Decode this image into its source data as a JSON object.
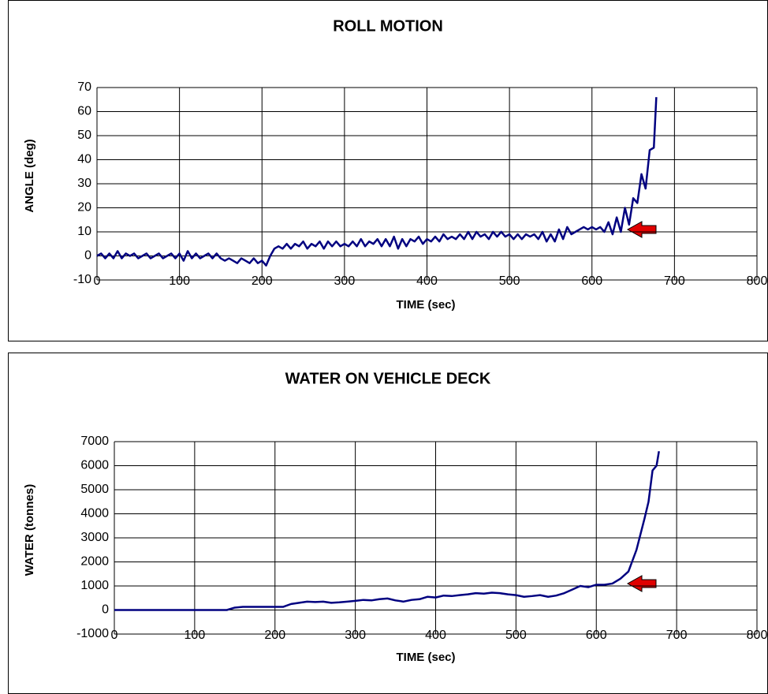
{
  "chart_data": [
    {
      "type": "line",
      "title": "ROLL MOTION",
      "xlabel": "TIME (sec)",
      "ylabel": "ANGLE (deg)",
      "color": "#000080",
      "grid": true,
      "xlim": [
        0,
        800
      ],
      "xticks": [
        0,
        100,
        200,
        300,
        400,
        500,
        600,
        700,
        800
      ],
      "ylim": [
        -10,
        70
      ],
      "yticks": [
        -10,
        0,
        10,
        20,
        30,
        40,
        50,
        60,
        70
      ],
      "x": [
        0,
        5,
        10,
        15,
        20,
        25,
        30,
        35,
        40,
        45,
        50,
        55,
        60,
        65,
        70,
        75,
        80,
        85,
        90,
        95,
        100,
        105,
        110,
        115,
        120,
        125,
        130,
        135,
        140,
        145,
        150,
        155,
        160,
        165,
        170,
        175,
        180,
        185,
        190,
        195,
        200,
        205,
        210,
        215,
        220,
        225,
        230,
        235,
        240,
        245,
        250,
        255,
        260,
        265,
        270,
        275,
        280,
        285,
        290,
        295,
        300,
        305,
        310,
        315,
        320,
        325,
        330,
        335,
        340,
        345,
        350,
        355,
        360,
        365,
        370,
        375,
        380,
        385,
        390,
        395,
        400,
        405,
        410,
        415,
        420,
        425,
        430,
        435,
        440,
        445,
        450,
        455,
        460,
        465,
        470,
        475,
        480,
        485,
        490,
        495,
        500,
        505,
        510,
        515,
        520,
        525,
        530,
        535,
        540,
        545,
        550,
        555,
        560,
        565,
        570,
        575,
        580,
        585,
        590,
        595,
        600,
        605,
        610,
        615,
        620,
        625,
        630,
        635,
        640,
        645,
        650,
        655,
        660,
        665,
        670,
        675,
        678
      ],
      "values": [
        0,
        1,
        -1,
        1,
        -1,
        2,
        -1,
        1,
        0,
        1,
        -1,
        0,
        1,
        -1,
        0,
        1,
        -1,
        0,
        1,
        -1,
        1,
        -2,
        2,
        -1,
        1,
        -1,
        0,
        1,
        -1,
        1,
        -1,
        -2,
        -1,
        -2,
        -3,
        -1,
        -2,
        -3,
        -1,
        -3,
        -2,
        -4,
        0,
        3,
        4,
        3,
        5,
        3,
        5,
        4,
        6,
        3,
        5,
        4,
        6,
        3,
        6,
        4,
        6,
        4,
        5,
        4,
        6,
        4,
        7,
        4,
        6,
        5,
        7,
        4,
        7,
        4,
        8,
        3,
        7,
        4,
        7,
        6,
        8,
        5,
        7,
        6,
        8,
        6,
        9,
        7,
        8,
        7,
        9,
        7,
        10,
        7,
        10,
        8,
        9,
        7,
        10,
        8,
        10,
        8,
        9,
        7,
        9,
        7,
        9,
        8,
        9,
        7,
        10,
        6,
        9,
        6,
        11,
        7,
        12,
        9,
        10,
        11,
        12,
        11,
        12,
        11,
        12,
        10,
        14,
        9,
        16,
        10,
        20,
        13,
        24,
        22,
        34,
        28,
        44,
        45,
        66
      ]
    },
    {
      "type": "line",
      "title": "WATER ON VEHICLE DECK",
      "xlabel": "TIME (sec)",
      "ylabel": "WATER (tonnes)",
      "color": "#000080",
      "grid": true,
      "xlim": [
        0,
        800
      ],
      "xticks": [
        0,
        100,
        200,
        300,
        400,
        500,
        600,
        700,
        800
      ],
      "ylim": [
        -1000,
        7000
      ],
      "yticks": [
        -1000,
        0,
        1000,
        2000,
        3000,
        4000,
        5000,
        6000,
        7000
      ],
      "x": [
        0,
        10,
        20,
        30,
        40,
        50,
        60,
        70,
        80,
        90,
        100,
        110,
        120,
        130,
        140,
        150,
        160,
        170,
        180,
        190,
        200,
        210,
        220,
        230,
        240,
        250,
        260,
        270,
        280,
        290,
        300,
        310,
        320,
        330,
        340,
        350,
        360,
        370,
        380,
        390,
        400,
        410,
        420,
        430,
        440,
        450,
        460,
        470,
        480,
        490,
        500,
        510,
        520,
        530,
        540,
        550,
        560,
        570,
        580,
        590,
        600,
        610,
        620,
        630,
        640,
        650,
        660,
        665,
        670,
        675,
        678
      ],
      "values": [
        0,
        0,
        0,
        0,
        0,
        0,
        0,
        0,
        0,
        0,
        0,
        0,
        0,
        0,
        0,
        100,
        130,
        130,
        130,
        130,
        130,
        130,
        250,
        300,
        350,
        330,
        350,
        300,
        320,
        350,
        380,
        420,
        400,
        450,
        480,
        400,
        350,
        420,
        450,
        550,
        520,
        600,
        580,
        620,
        650,
        700,
        680,
        720,
        700,
        650,
        620,
        550,
        580,
        620,
        550,
        600,
        700,
        850,
        1000,
        950,
        1050,
        1050,
        1100,
        1300,
        1600,
        2500,
        3800,
        4500,
        5800,
        6000,
        6600
      ]
    }
  ]
}
